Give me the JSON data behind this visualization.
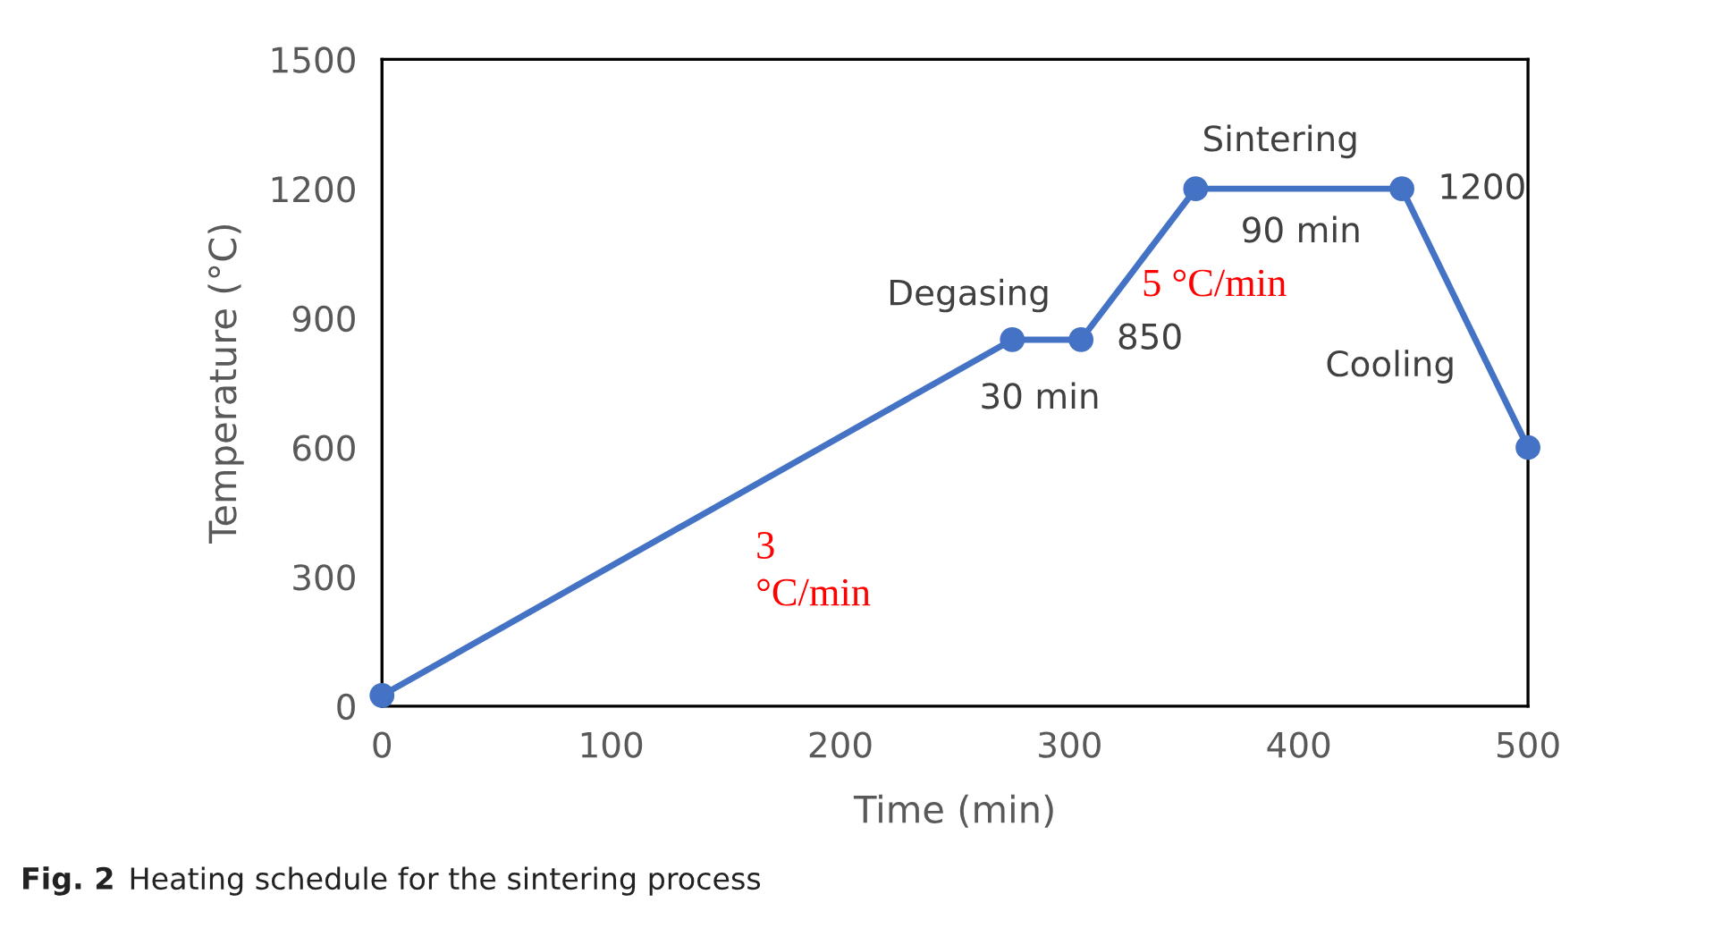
{
  "chart_data": {
    "type": "line",
    "xlabel": "Time (min)",
    "ylabel": "Temperature (°C)",
    "x": [
      0,
      275,
      305,
      355,
      445,
      500
    ],
    "series": [
      {
        "color": "#4472c4",
        "values": [
          25,
          850,
          850,
          1200,
          1200,
          600
        ]
      }
    ],
    "xlim": [
      0,
      500
    ],
    "xticks": [
      0,
      100,
      200,
      300,
      400,
      500
    ],
    "ylim": [
      0,
      1500
    ],
    "yticks": [
      0,
      300,
      600,
      900,
      1200,
      1500
    ],
    "marker": "circle",
    "line_style": "solid",
    "grid": false,
    "legend": false,
    "annotations": [
      "Degasing",
      "30 min",
      "850",
      "Sintering",
      "90 min",
      "1200",
      "5 °C/min",
      "Cooling",
      "3\n°C/min",
      "Fig. 2",
      "Heating schedule for the sintering process"
    ]
  }
}
